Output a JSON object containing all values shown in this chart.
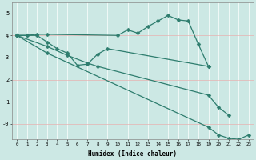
{
  "xlabel": "Humidex (Indice chaleur)",
  "line_color": "#2e7d6e",
  "bg_color": "#cce8e4",
  "xlim": [
    -0.5,
    23.5
  ],
  "ylim": [
    -0.7,
    5.5
  ],
  "lines": [
    {
      "x": [
        0,
        1,
        2,
        3,
        10,
        11,
        12,
        13,
        14,
        15,
        16,
        17,
        18,
        19
      ],
      "y": [
        4.0,
        4.0,
        4.05,
        4.05,
        4.0,
        4.25,
        4.1,
        4.4,
        4.65,
        4.9,
        4.7,
        4.65,
        3.6,
        2.6
      ]
    },
    {
      "x": [
        0,
        1,
        2,
        3,
        4,
        5,
        6,
        7,
        8,
        9,
        19
      ],
      "y": [
        4.0,
        4.0,
        4.0,
        3.7,
        3.4,
        3.2,
        2.65,
        2.7,
        3.15,
        3.4,
        2.6
      ]
    },
    {
      "x": [
        0,
        3,
        5,
        7,
        8,
        19,
        20,
        21
      ],
      "y": [
        4.0,
        3.5,
        3.1,
        2.75,
        2.6,
        1.3,
        0.75,
        0.4
      ]
    },
    {
      "x": [
        0,
        3,
        19,
        20,
        21,
        22,
        23
      ],
      "y": [
        4.0,
        3.2,
        -0.15,
        -0.5,
        -0.65,
        -0.7,
        -0.5
      ]
    }
  ],
  "xticks": [
    0,
    1,
    2,
    3,
    4,
    5,
    6,
    7,
    8,
    9,
    10,
    11,
    12,
    13,
    14,
    15,
    16,
    17,
    18,
    19,
    20,
    21,
    22,
    23
  ],
  "yticks": [
    0,
    1,
    2,
    3,
    4,
    5
  ],
  "ytick_labels": [
    "-0",
    "1",
    "2",
    "3",
    "4",
    "5"
  ],
  "marker": "D",
  "markersize": 2.5,
  "linewidth": 0.9
}
